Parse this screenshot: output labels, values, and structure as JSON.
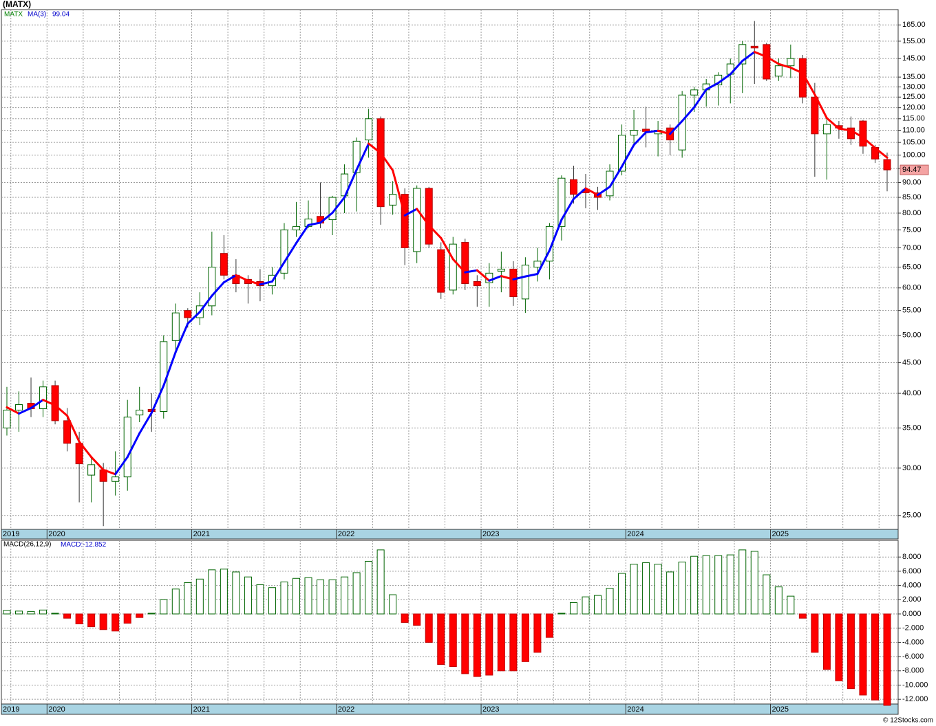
{
  "chart_data": [
    {
      "type": "candlestick",
      "title": "(MATX)",
      "symbol": "MATX",
      "log": true,
      "grid": true,
      "up_color": "#006400",
      "down_color": "#ff0000",
      "last_color": "#f4a3a3",
      "categories": [
        "2019",
        null,
        null,
        null,
        "2020",
        null,
        null,
        null,
        null,
        null,
        null,
        null,
        null,
        null,
        null,
        null,
        "2021",
        null,
        null,
        null,
        null,
        null,
        null,
        null,
        null,
        null,
        null,
        null,
        "2022",
        null,
        null,
        null,
        null,
        null,
        null,
        null,
        null,
        null,
        null,
        null,
        "2023",
        null,
        null,
        null,
        null,
        null,
        null,
        null,
        null,
        null,
        null,
        null,
        "2024",
        null,
        null,
        null,
        null,
        null,
        null,
        null,
        null,
        null,
        null,
        null,
        "2025",
        null,
        null,
        null,
        null,
        null,
        null,
        null,
        null,
        null
      ],
      "open": [
        35,
        37.5,
        38.5,
        37.7,
        41.2,
        36,
        33,
        29.2,
        29.8,
        28.5,
        29,
        36.8,
        37.6,
        37.3,
        49,
        55,
        53.5,
        56,
        68.5,
        63,
        62,
        61.5,
        60.5,
        63.5,
        75,
        76,
        79,
        78,
        85.5,
        93.5,
        106,
        115,
        82.5,
        86,
        69,
        88,
        69.5,
        59.5,
        71.5,
        61.5,
        61.2,
        64,
        64.5,
        57.5,
        65,
        66.5,
        76,
        91,
        87.5,
        86.5,
        85.5,
        94,
        108,
        110.5,
        108.5,
        111,
        102,
        126,
        128.5,
        131,
        136.5,
        142,
        152,
        153,
        135.5,
        141,
        145,
        125,
        108.5,
        112,
        111,
        114,
        103,
        98.3
      ],
      "high": [
        41,
        40.3,
        42.5,
        42,
        42,
        37.8,
        34.5,
        31.2,
        30.6,
        32,
        39,
        41,
        40,
        50,
        56.5,
        55.5,
        59,
        74.5,
        73.5,
        67,
        63,
        64.5,
        65,
        77,
        83.5,
        84,
        90,
        85.5,
        96.5,
        107,
        119.5,
        116,
        90.5,
        88,
        89,
        88.5,
        71.5,
        73,
        72.5,
        63,
        66,
        69,
        66.5,
        67.5,
        70,
        77,
        92.5,
        96,
        93,
        88.5,
        96.5,
        112.5,
        119,
        120.5,
        114,
        112.5,
        128,
        130,
        134,
        137.5,
        145,
        155,
        167.5,
        154,
        145,
        153,
        147,
        132,
        116,
        114,
        116,
        114.5,
        104,
        101
      ],
      "low": [
        34,
        34.5,
        36.5,
        36.5,
        35.5,
        32,
        26.3,
        26.3,
        24,
        27,
        27.5,
        35.8,
        34.5,
        36.3,
        47,
        51.5,
        52,
        54,
        62,
        59,
        56.5,
        57,
        58.5,
        62,
        73,
        75.5,
        75.5,
        73.5,
        80,
        80.5,
        99,
        76.5,
        79.5,
        65.5,
        66,
        70,
        57.5,
        58.5,
        59.5,
        55.8,
        55.8,
        59,
        56,
        54.5,
        61.5,
        62,
        72,
        83,
        81.5,
        81,
        84,
        92.5,
        103.5,
        103,
        99.5,
        100,
        99,
        118,
        120.5,
        121,
        122,
        127,
        131.5,
        133,
        133,
        134.5,
        122,
        92,
        91,
        106.5,
        104,
        100.5,
        97,
        87
      ],
      "close": [
        37.5,
        38.3,
        37.7,
        41,
        36,
        33,
        30.5,
        30.4,
        28.5,
        29,
        36.5,
        37.5,
        37.3,
        48.8,
        54.5,
        53.5,
        56,
        65,
        63,
        61,
        61,
        60.5,
        63,
        75,
        76,
        78.2,
        77,
        85,
        93,
        105.5,
        115,
        82,
        86,
        70,
        88,
        71,
        59,
        71,
        61,
        60.5,
        63.5,
        64.5,
        58,
        65.5,
        66.5,
        76,
        91.5,
        86,
        86.5,
        85,
        94,
        108,
        110,
        109.5,
        110,
        106,
        126,
        128.5,
        131.5,
        136,
        142,
        153,
        151,
        134,
        141,
        145,
        125,
        108.5,
        112.5,
        111,
        106.5,
        103.5,
        98.5,
        94.47
      ],
      "ma": {
        "name": "MA(3)",
        "up_color": "#0000ff",
        "down_color": "#ff0000",
        "values": [
          37.9,
          37.0,
          37.8,
          39.0,
          38.2,
          36.7,
          33.2,
          31.3,
          29.8,
          29.3,
          31.3,
          34.3,
          37.1,
          41.2,
          46.9,
          52.3,
          54.7,
          58.2,
          61.3,
          63.0,
          61.7,
          60.8,
          61.5,
          66.2,
          71.3,
          76.4,
          77.1,
          80.1,
          85.0,
          94.5,
          104.5,
          100.8,
          94.3,
          79.3,
          81.3,
          76.3,
          72.7,
          67.0,
          63.7,
          64.2,
          61.7,
          62.8,
          62.0,
          62.7,
          63.3,
          69.3,
          78.0,
          84.5,
          88.0,
          85.8,
          88.5,
          95.7,
          104.0,
          109.2,
          109.8,
          108.5,
          114.0,
          120.2,
          128.7,
          132.0,
          136.5,
          143.7,
          148.7,
          146.0,
          142.0,
          140.0,
          137.0,
          126.2,
          115.3,
          110.7,
          110.0,
          107.0,
          102.8,
          99.04
        ]
      },
      "ylim": [
        23.7,
        175
      ],
      "yticks": [
        {
          "value": 25,
          "label": "25.00"
        },
        {
          "value": 30,
          "label": "30.00"
        },
        {
          "value": 35,
          "label": "35.00"
        },
        {
          "value": 40,
          "label": "40.00"
        },
        {
          "value": 45,
          "label": "45.00"
        },
        {
          "value": 50,
          "label": "50.00"
        },
        {
          "value": 55,
          "label": "55.00"
        },
        {
          "value": 60,
          "label": "60.00"
        },
        {
          "value": 65,
          "label": "65.00"
        },
        {
          "value": 70,
          "label": "70.00"
        },
        {
          "value": 75,
          "label": "75.00"
        },
        {
          "value": 80,
          "label": "80.00"
        },
        {
          "value": 85,
          "label": "85.00"
        },
        {
          "value": 90,
          "label": "90.00"
        },
        {
          "value": 95,
          "label": "95.00"
        },
        {
          "value": 100,
          "label": "100.00"
        },
        {
          "value": 105,
          "label": "105.00"
        },
        {
          "value": 110,
          "label": "110.00"
        },
        {
          "value": 115,
          "label": "115.00"
        },
        {
          "value": 120,
          "label": "120.00"
        },
        {
          "value": 125,
          "label": "125.00"
        },
        {
          "value": 130,
          "label": "130.00"
        },
        {
          "value": 135,
          "label": "135.00"
        },
        {
          "value": 145,
          "label": "145.00"
        },
        {
          "value": 155,
          "label": "155.00"
        },
        {
          "value": 165,
          "label": "165.00"
        }
      ]
    },
    {
      "type": "bar",
      "name": "MACD(26,12,9)",
      "value_caption": "MACD:",
      "grid": true,
      "up_color": "#006400",
      "down_color": "#ff0000",
      "values": [
        0.5,
        0.4,
        0.35,
        0.55,
        0.1,
        -0.6,
        -1.4,
        -1.8,
        -2.2,
        -2.4,
        -1.3,
        -0.5,
        0.1,
        2.0,
        3.5,
        4.4,
        4.9,
        6.2,
        6.3,
        5.9,
        5.2,
        4.1,
        3.7,
        4.5,
        5.0,
        5.1,
        4.8,
        4.8,
        5.2,
        5.8,
        7.4,
        9.0,
        2.7,
        -1.2,
        -1.6,
        -4.0,
        -7.1,
        -7.4,
        -8.4,
        -8.8,
        -8.6,
        -8.0,
        -8.0,
        -6.7,
        -5.4,
        -3.3,
        0.1,
        1.6,
        2.4,
        2.6,
        3.6,
        5.7,
        7.0,
        7.2,
        7.0,
        5.9,
        7.3,
        8.1,
        8.2,
        8.2,
        8.3,
        9.0,
        8.8,
        5.5,
        3.8,
        2.5,
        -0.6,
        -5.4,
        -7.8,
        -9.4,
        -10.5,
        -11.4,
        -12.1,
        -12.852
      ],
      "ylim": [
        -12.66,
        10.34
      ],
      "yticks": [
        {
          "value": 8,
          "label": "8.000"
        },
        {
          "value": 6,
          "label": "6.000"
        },
        {
          "value": 4,
          "label": "4.000"
        },
        {
          "value": 2,
          "label": "2.000"
        },
        {
          "value": 0,
          "label": "0.000"
        },
        {
          "value": -2,
          "label": "-2.000"
        },
        {
          "value": -4,
          "label": "-4.000"
        },
        {
          "value": -6,
          "label": "-6.000"
        },
        {
          "value": -8,
          "label": "-8.000"
        },
        {
          "value": -10,
          "label": "-10.000"
        },
        {
          "value": -12,
          "label": "-12.000"
        }
      ]
    }
  ],
  "footer": "© 12Stocks.com"
}
